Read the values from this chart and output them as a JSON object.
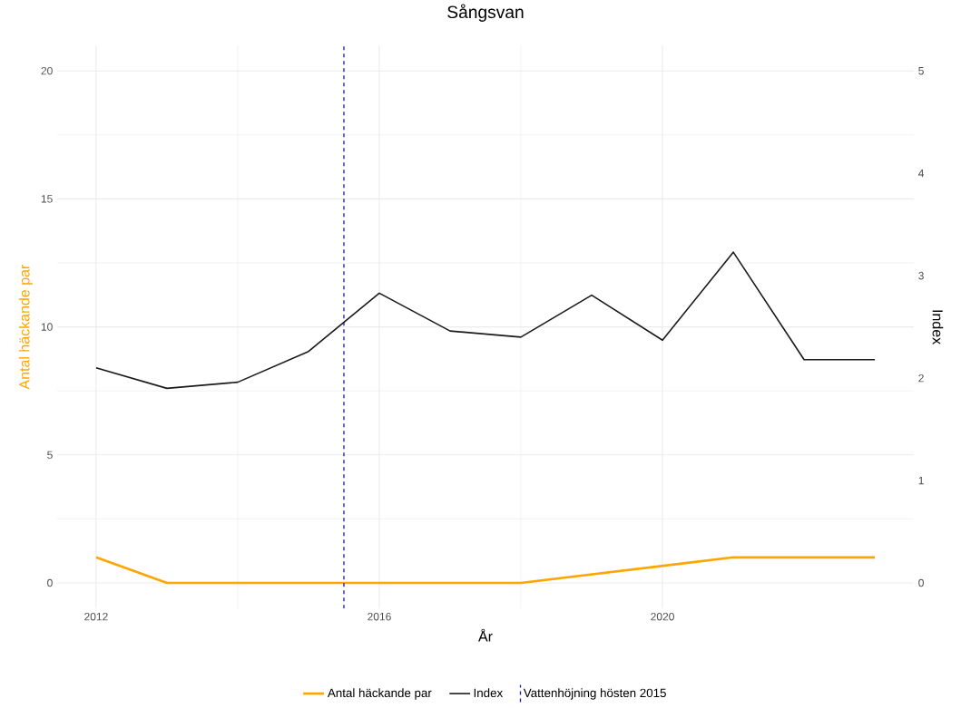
{
  "chart_data": {
    "type": "line",
    "title": "Sångsvan",
    "xlabel": "År",
    "ylabel": "Antal häckande par",
    "y2label": "Index",
    "x": [
      2012,
      2013,
      2014,
      2015,
      2016,
      2017,
      2018,
      2019,
      2020,
      2021,
      2022,
      2023
    ],
    "series": [
      {
        "name": "Antal häckande par",
        "color": "#ffa500",
        "x": [
          2012,
          2013,
          2014,
          2015,
          2016,
          2017,
          2018,
          2021,
          2022,
          2023
        ],
        "values": [
          1,
          0,
          0,
          0,
          0,
          0,
          0,
          1,
          1,
          1
        ]
      },
      {
        "name": "Index",
        "color": "#1a1a1a",
        "axis": "y2",
        "values": [
          2.1,
          1.9,
          1.96,
          2.26,
          2.83,
          2.46,
          2.4,
          2.81,
          2.37,
          3.23,
          2.18,
          2.18
        ]
      }
    ],
    "ref_lines": [
      {
        "axis": "x",
        "value": 2015.5,
        "label": "Vattenhöjning hösten 2015",
        "color": "#1c1cb0",
        "line_style": "dashed"
      }
    ],
    "xlim": [
      2011.45,
      2023.55
    ],
    "ylim": [
      -1,
      21
    ],
    "y2lim": [
      -0.25,
      5.25
    ],
    "xticks": [
      2012,
      2016,
      2020
    ],
    "yticks": [
      0,
      5,
      10,
      15,
      20
    ],
    "y2ticks": [
      0,
      1,
      2,
      3,
      4,
      5
    ],
    "grid": true,
    "legend": "bottom",
    "line_style": "solid"
  }
}
